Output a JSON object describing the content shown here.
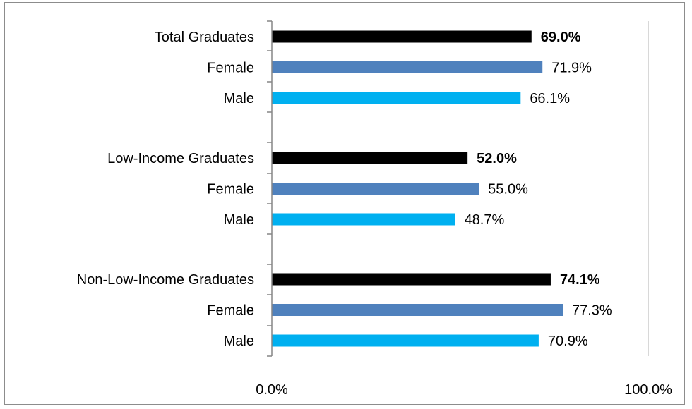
{
  "chart_data": {
    "type": "bar",
    "orientation": "horizontal",
    "title": "",
    "xlabel": "",
    "ylabel": "",
    "xlim": [
      0,
      100
    ],
    "x_tick_labels": [
      "0.0%",
      "100.0%"
    ],
    "grid": false,
    "legend": "none",
    "categories": [
      "Total Graduates",
      "Female",
      "Male",
      "Low-Income Graduates",
      "Female",
      "Male",
      "Non-Low-Income Graduates",
      "Female",
      "Male"
    ],
    "values": [
      69.0,
      71.9,
      66.1,
      52.0,
      55.0,
      48.7,
      74.1,
      77.3,
      70.9
    ],
    "value_labels": [
      "69.0%",
      "71.9%",
      "66.1%",
      "52.0%",
      "55.0%",
      "48.7%",
      "74.1%",
      "77.3%",
      "70.9%"
    ],
    "bar_colors": [
      "#000000",
      "#4f81bd",
      "#00b0f0",
      "#000000",
      "#4f81bd",
      "#00b0f0",
      "#000000",
      "#4f81bd",
      "#00b0f0"
    ],
    "bold_labels": [
      true,
      false,
      false,
      true,
      false,
      false,
      true,
      false,
      false
    ]
  }
}
